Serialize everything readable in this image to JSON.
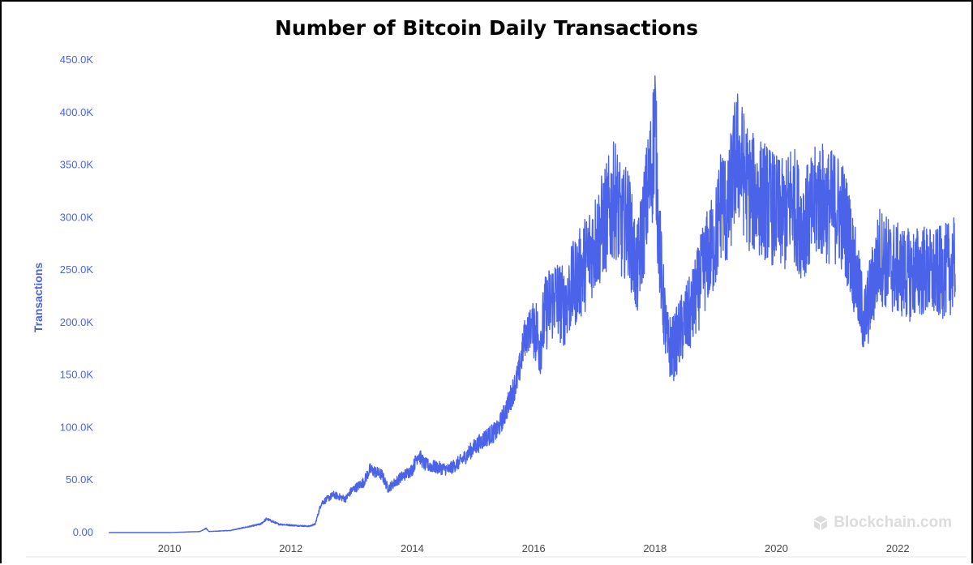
{
  "chart_data": {
    "type": "line",
    "title": "Number of Bitcoin Daily Transactions",
    "ylabel": "Transactions",
    "xlabel": "",
    "ylim": [
      0,
      450000
    ],
    "xlim": [
      2008.97,
      2023.0
    ],
    "y_ticks": [
      0,
      50000,
      100000,
      150000,
      200000,
      250000,
      300000,
      350000,
      400000,
      450000
    ],
    "y_tick_labels": [
      "0.00",
      "50.0K",
      "100.0K",
      "150.0K",
      "200.0K",
      "250.0K",
      "300.0K",
      "350.0K",
      "400.0K",
      "450.0K"
    ],
    "x_ticks": [
      2010,
      2012,
      2014,
      2016,
      2018,
      2020,
      2022
    ],
    "x_tick_labels": [
      "2010",
      "2012",
      "2014",
      "2016",
      "2018",
      "2020",
      "2022"
    ],
    "grid": false,
    "line_color": "#4a63e8",
    "series": [
      {
        "x": [
          2009.0,
          2009.5,
          2010.0,
          2010.5,
          2010.6,
          2010.65,
          2011.0,
          2011.5,
          2011.6,
          2011.8,
          2012.0,
          2012.3,
          2012.4,
          2012.5,
          2012.7,
          2012.9,
          2013.0,
          2013.2,
          2013.3,
          2013.5,
          2013.6,
          2013.8,
          2014.0,
          2014.1,
          2014.2,
          2014.4,
          2014.6,
          2014.8,
          2015.0,
          2015.2,
          2015.4,
          2015.5,
          2015.6,
          2015.75,
          2015.85,
          2016.0,
          2016.1,
          2016.2,
          2016.35,
          2016.5,
          2016.65,
          2016.8,
          2016.95,
          2017.05,
          2017.2,
          2017.35,
          2017.45,
          2017.55,
          2017.7,
          2017.85,
          2017.95,
          2018.0,
          2018.05,
          2018.12,
          2018.2,
          2018.3,
          2018.45,
          2018.6,
          2018.75,
          2018.85,
          2019.0,
          2019.1,
          2019.2,
          2019.28,
          2019.35,
          2019.45,
          2019.55,
          2019.7,
          2019.85,
          2020.0,
          2020.15,
          2020.25,
          2020.4,
          2020.55,
          2020.7,
          2020.85,
          2021.0,
          2021.1,
          2021.2,
          2021.35,
          2021.45,
          2021.55,
          2021.7,
          2021.85,
          2022.0,
          2022.2,
          2022.4,
          2022.6,
          2022.8,
          2022.95
        ],
        "y": [
          0,
          0,
          0,
          1000,
          4000,
          1000,
          2000,
          8000,
          13000,
          8000,
          7000,
          6000,
          8000,
          28000,
          36000,
          32000,
          40000,
          48000,
          60000,
          55000,
          42000,
          52000,
          60000,
          75000,
          65000,
          62000,
          60000,
          68000,
          80000,
          90000,
          97000,
          110000,
          125000,
          150000,
          185000,
          200000,
          180000,
          210000,
          225000,
          215000,
          235000,
          250000,
          270000,
          280000,
          300000,
          320000,
          290000,
          300000,
          245000,
          310000,
          350000,
          395000,
          300000,
          230000,
          180000,
          175000,
          195000,
          210000,
          240000,
          260000,
          280000,
          320000,
          300000,
          340000,
          360000,
          345000,
          325000,
          320000,
          315000,
          305000,
          300000,
          320000,
          295000,
          300000,
          320000,
          310000,
          310000,
          300000,
          280000,
          230000,
          200000,
          225000,
          265000,
          255000,
          250000,
          245000,
          250000,
          245000,
          250000,
          255000
        ]
      }
    ]
  },
  "watermark": {
    "text": "Blockchain.com",
    "icon": "blockchain-logo-icon"
  }
}
